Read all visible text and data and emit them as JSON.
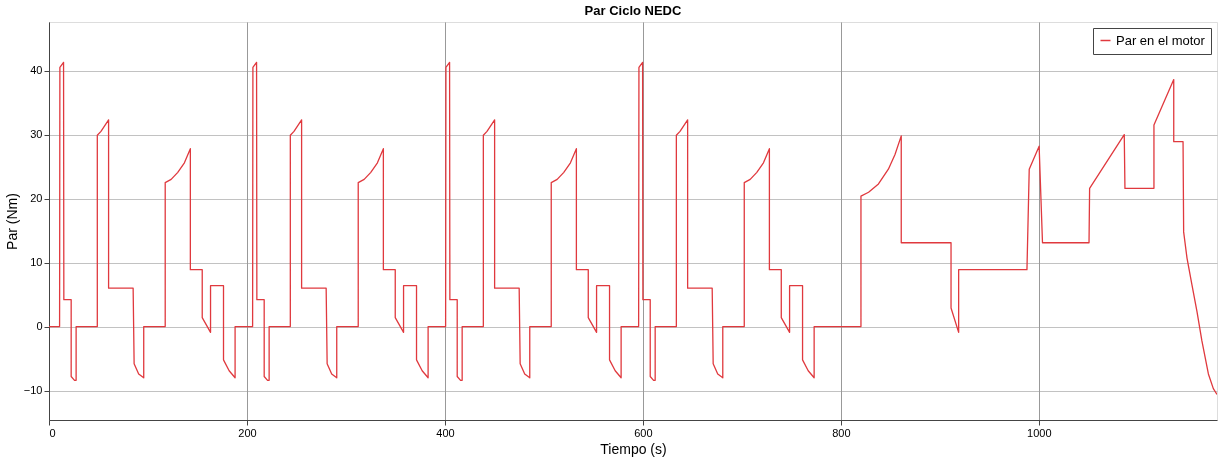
{
  "chart_data": {
    "type": "line",
    "title": "Par Ciclo NEDC",
    "xlabel": "Tiempo (s)",
    "ylabel": "Par (Nm)",
    "xlim": [
      0,
      1180
    ],
    "xticks": [
      0,
      200,
      400,
      600,
      800,
      1000
    ],
    "ylim": [
      -14.6,
      47.6
    ],
    "yticks": [
      -10,
      0,
      10,
      20,
      30,
      40
    ],
    "grid": true,
    "legend": "top right",
    "line_style": "solid",
    "marker": "none",
    "series": [
      {
        "name": "Par en el motor",
        "color": "#e0393e",
        "x": [
          0,
          10.7,
          11,
          14.7,
          15,
          22.4,
          22.4,
          25.8,
          27.4,
          27.4,
          48.8,
          48.8,
          52.5,
          60.2,
          60.2,
          85,
          86,
          90.6,
          95.7,
          95.7,
          117.4,
          117.4,
          123.4,
          130.1,
          136.8,
          142.8,
          142.8,
          154.8,
          154.8,
          163.2,
          163.2,
          176.3,
          176.3,
          182,
          188,
          188,
          205.7,
          206,
          209.7,
          210,
          217.4,
          217.4,
          220.8,
          222.4,
          222.4,
          243.8,
          243.8,
          247.5,
          255.2,
          255.2,
          280,
          281,
          285.6,
          290.7,
          290.7,
          312.4,
          312.4,
          318.4,
          325.1,
          331.8,
          337.8,
          337.8,
          349.8,
          349.8,
          358.2,
          358.2,
          371.3,
          371.3,
          377,
          383,
          383,
          400.7,
          401,
          404.7,
          405,
          412.4,
          412.4,
          415.8,
          417.4,
          417.4,
          438.8,
          438.8,
          442.5,
          450.2,
          450.2,
          475,
          476,
          480.6,
          485.7,
          485.7,
          507.4,
          507.4,
          513.4,
          520.1,
          526.8,
          532.8,
          532.8,
          544.8,
          544.8,
          553.2,
          553.2,
          566.3,
          566.3,
          572,
          578,
          578,
          595.7,
          596,
          599.7,
          600,
          607.4,
          607.4,
          610.8,
          612.4,
          612.4,
          633.8,
          633.8,
          637.5,
          645.2,
          645.2,
          670,
          671,
          675.6,
          680.7,
          680.7,
          702.4,
          702.4,
          708.4,
          715.1,
          721.8,
          727.8,
          727.8,
          739.8,
          739.8,
          748.2,
          748.2,
          761.3,
          761.3,
          767,
          773,
          773,
          820.3,
          820.3,
          828,
          838,
          848,
          854.7,
          861,
          861,
          911.3,
          911.3,
          919,
          919,
          988,
          990.3,
          1000.3,
          1003.7,
          1050.7,
          1051.3,
          1086.3,
          1087,
          1116.3,
          1116.3,
          1136.3,
          1136.3,
          1145.7,
          1146.3,
          1149.7,
          1154.7,
          1159.7,
          1164.7,
          1171.3,
          1176.3,
          1180
        ],
        "values": [
          0,
          0,
          40.5,
          41.3,
          4.2,
          4.2,
          -7.8,
          -8.4,
          -8.4,
          0,
          0,
          29.9,
          30.5,
          32.3,
          6,
          6,
          -5.8,
          -7.4,
          -8,
          0,
          0,
          22.5,
          23,
          24.1,
          25.6,
          27.8,
          8.9,
          8.9,
          1.4,
          -0.9,
          6.4,
          6.4,
          -5.2,
          -6.9,
          -8,
          0,
          0,
          40.5,
          41.3,
          4.2,
          4.2,
          -7.8,
          -8.4,
          -8.4,
          0,
          0,
          29.9,
          30.5,
          32.3,
          6,
          6,
          -5.8,
          -7.4,
          -8,
          0,
          0,
          22.5,
          23,
          24.1,
          25.6,
          27.8,
          8.9,
          8.9,
          1.4,
          -0.9,
          6.4,
          6.4,
          -5.2,
          -6.9,
          -8,
          0,
          0,
          40.5,
          41.3,
          4.2,
          4.2,
          -7.8,
          -8.4,
          -8.4,
          0,
          0,
          29.9,
          30.5,
          32.3,
          6,
          6,
          -5.8,
          -7.4,
          -8,
          0,
          0,
          22.5,
          23,
          24.1,
          25.6,
          27.8,
          8.9,
          8.9,
          1.4,
          -0.9,
          6.4,
          6.4,
          -5.2,
          -6.9,
          -8,
          0,
          0,
          40.5,
          41.3,
          4.2,
          4.2,
          -7.8,
          -8.4,
          -8.4,
          0,
          0,
          29.9,
          30.5,
          32.3,
          6,
          6,
          -5.8,
          -7.4,
          -8,
          0,
          0,
          22.5,
          23,
          24.1,
          25.6,
          27.8,
          8.9,
          8.9,
          1.4,
          -0.9,
          6.4,
          6.4,
          -5.2,
          -6.9,
          -8,
          0,
          0,
          20.4,
          21,
          22.3,
          24.6,
          26.9,
          29.8,
          13.1,
          13.1,
          2.9,
          -0.9,
          8.9,
          8.9,
          24.6,
          28.2,
          13.1,
          13.1,
          21.6,
          30,
          21.6,
          21.6,
          31.5,
          38.6,
          28.9,
          28.9,
          14.8,
          10.7,
          6.5,
          2.4,
          -2.2,
          -7.4,
          -9.7,
          -10.6
        ]
      }
    ]
  }
}
